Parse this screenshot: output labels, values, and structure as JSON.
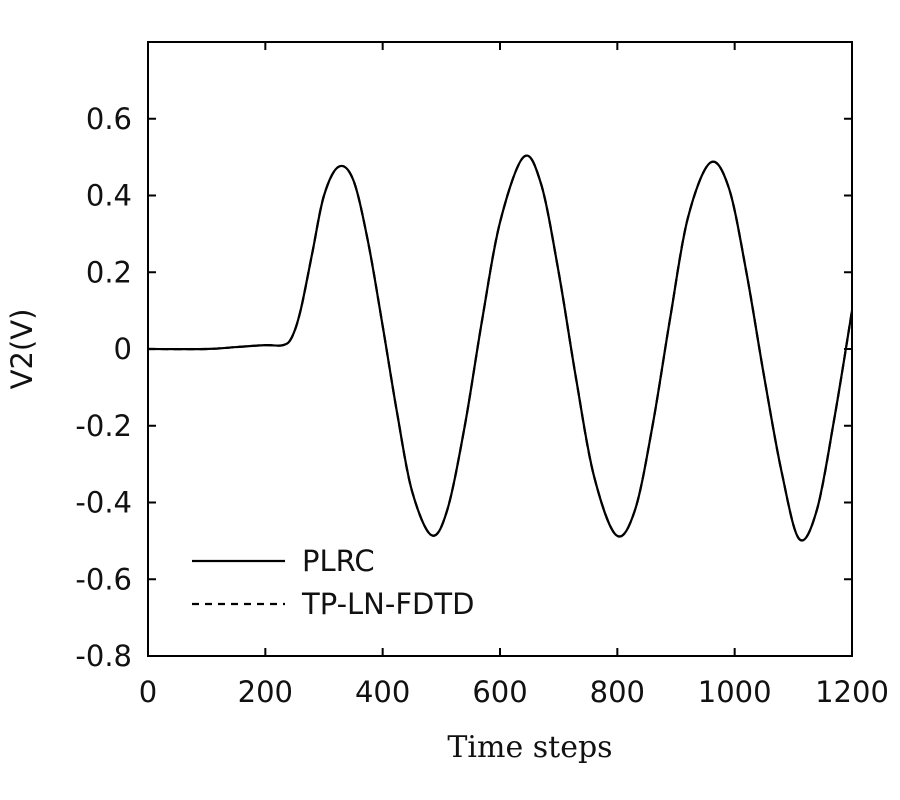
{
  "chart_data": {
    "type": "line",
    "title": "",
    "xlabel": "Time steps",
    "ylabel": "V2(V)",
    "xlim": [
      0,
      1200
    ],
    "ylim": [
      -0.8,
      0.8
    ],
    "x_ticks": [
      0,
      200,
      400,
      600,
      800,
      1000,
      1200
    ],
    "y_ticks": [
      0.6,
      0.4,
      0.2,
      0,
      -0.2,
      -0.4,
      -0.6,
      -0.8
    ],
    "x_tick_labels": [
      "0",
      "200",
      "400",
      "600",
      "800",
      "1000",
      "1200"
    ],
    "y_tick_labels": [
      "0.6",
      "0.4",
      "0.2",
      "0",
      "-0.2",
      "-0.4",
      "-0.6",
      "-0.8"
    ],
    "grid": false,
    "legend_position": "bottom-left",
    "series": [
      {
        "name": "PLRC",
        "style": "solid",
        "color": "#000000",
        "x": [
          0,
          100,
          150,
          200,
          230,
          245,
          260,
          280,
          300,
          325,
          350,
          375,
          400,
          425,
          450,
          483,
          510,
          540,
          570,
          600,
          640,
          670,
          700,
          730,
          760,
          798,
          830,
          860,
          890,
          920,
          958,
          990,
          1020,
          1050,
          1080,
          1110,
          1140,
          1170,
          1200
        ],
        "y": [
          0.0,
          0.0,
          0.005,
          0.01,
          0.01,
          0.03,
          0.1,
          0.25,
          0.4,
          0.475,
          0.44,
          0.28,
          0.06,
          -0.17,
          -0.37,
          -0.485,
          -0.42,
          -0.2,
          0.08,
          0.33,
          0.5,
          0.43,
          0.2,
          -0.08,
          -0.33,
          -0.485,
          -0.42,
          -0.2,
          0.08,
          0.34,
          0.485,
          0.42,
          0.2,
          -0.07,
          -0.32,
          -0.495,
          -0.42,
          -0.18,
          0.1
        ]
      },
      {
        "name": "TP-LN-FDTD",
        "style": "dashed",
        "color": "#000000",
        "x": [
          0,
          100,
          150,
          200,
          230,
          245,
          260,
          280,
          300,
          325,
          350,
          375,
          400,
          425,
          450,
          483,
          510,
          540,
          570,
          600,
          640,
          670,
          700,
          730,
          760,
          798,
          830,
          860,
          890,
          920,
          958,
          990,
          1020,
          1050,
          1080,
          1110,
          1140,
          1170,
          1200
        ],
        "y": [
          0.0,
          0.0,
          0.005,
          0.01,
          0.01,
          0.03,
          0.1,
          0.25,
          0.4,
          0.475,
          0.44,
          0.28,
          0.06,
          -0.17,
          -0.37,
          -0.485,
          -0.42,
          -0.2,
          0.08,
          0.33,
          0.5,
          0.43,
          0.2,
          -0.08,
          -0.33,
          -0.485,
          -0.42,
          -0.2,
          0.08,
          0.34,
          0.485,
          0.42,
          0.2,
          -0.07,
          -0.32,
          -0.495,
          -0.42,
          -0.18,
          0.1
        ]
      }
    ]
  }
}
